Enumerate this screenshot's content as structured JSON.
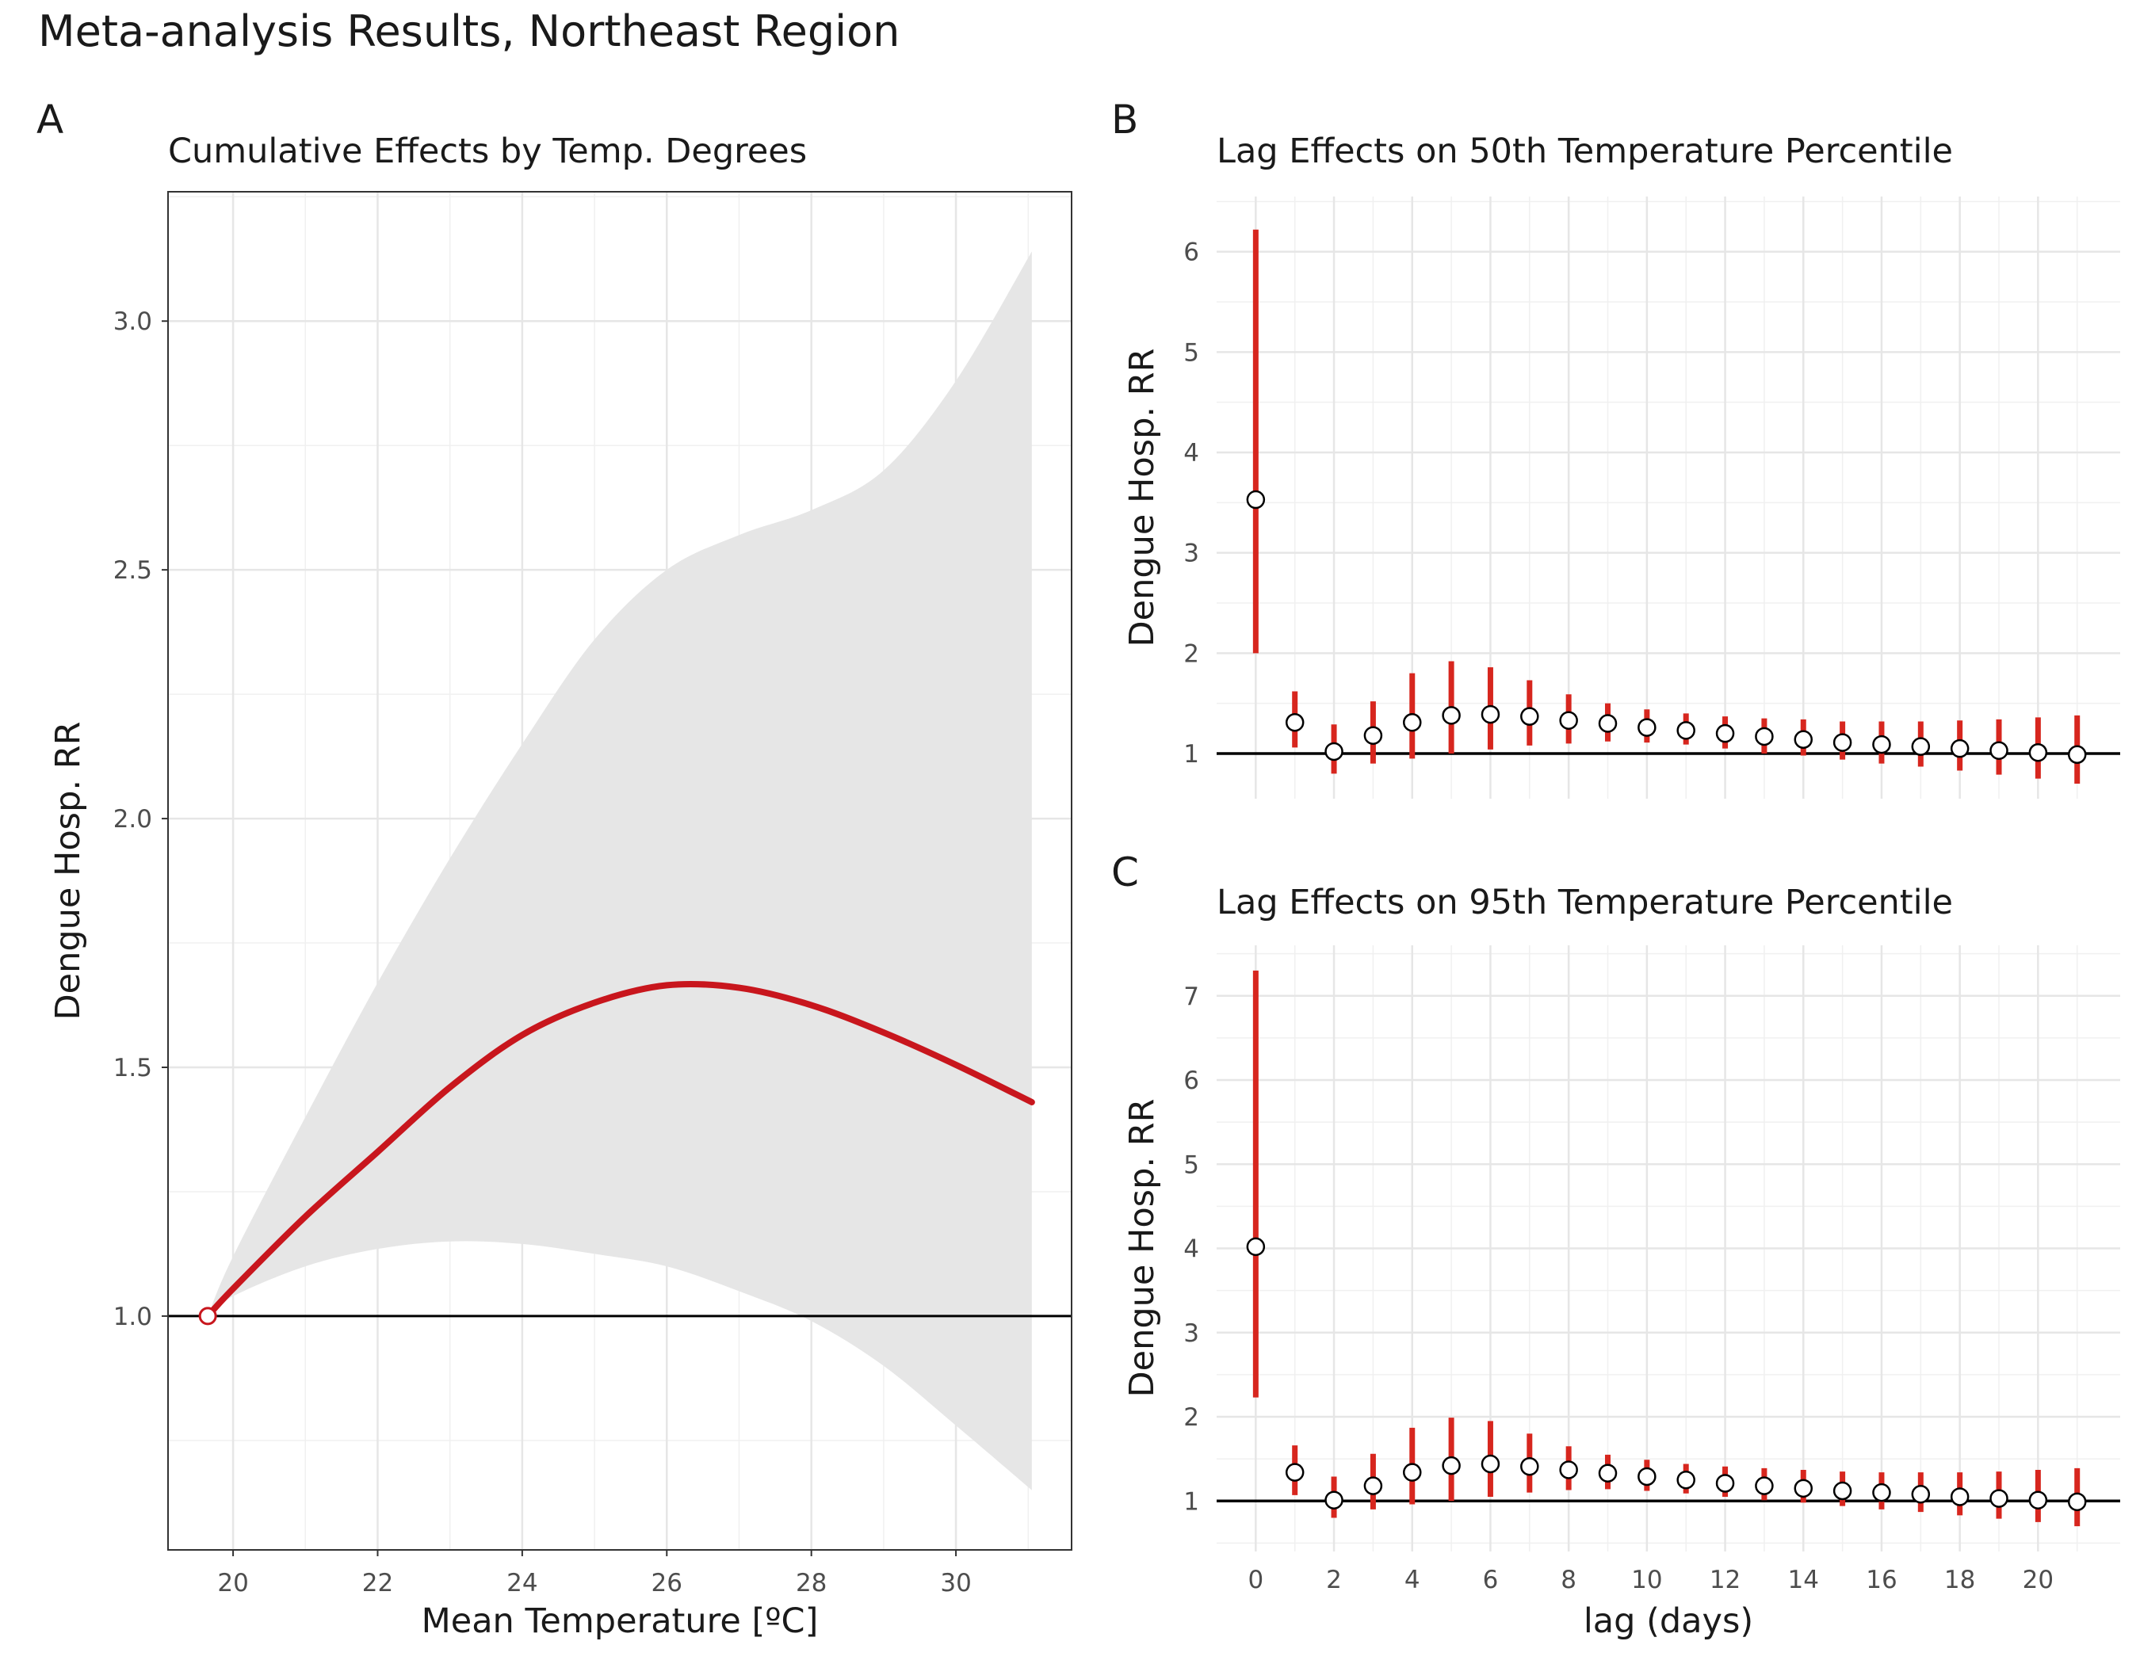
{
  "title": "Meta-analysis Results, Northeast Region",
  "chart_data": [
    {
      "tag": "A",
      "type": "line",
      "title": "Cumulative Effects by Temp. Degrees",
      "xlabel": "Mean Temperature [ºC]",
      "ylabel": "Dengue Hosp. RR",
      "xlim": [
        19.1,
        31.6
      ],
      "ylim": [
        0.53,
        3.26
      ],
      "xticks": [
        20,
        22,
        24,
        26,
        28,
        30
      ],
      "yticks": [
        1.0,
        1.5,
        2.0,
        2.5,
        3.0
      ],
      "ytick_labels": [
        "1.0",
        "1.5",
        "2.0",
        "2.5",
        "3.0"
      ],
      "grid": true,
      "reference_line": 1,
      "reference_point": {
        "x": 19.65,
        "y": 1.0
      },
      "colors": {
        "line": "#c8161d",
        "band": "#e6e6e6",
        "marker_edge": "#c8161d"
      },
      "x": [
        19.65,
        20,
        21,
        22,
        23,
        24,
        25,
        26,
        27,
        28,
        29,
        30,
        31.05
      ],
      "y": [
        1.0,
        1.055,
        1.2,
        1.33,
        1.46,
        1.565,
        1.63,
        1.665,
        1.66,
        1.625,
        1.57,
        1.505,
        1.43
      ],
      "lower": [
        1.0,
        1.04,
        1.1,
        1.135,
        1.15,
        1.145,
        1.125,
        1.1,
        1.05,
        0.99,
        0.9,
        0.78,
        0.65
      ],
      "upper": [
        1.0,
        1.12,
        1.4,
        1.67,
        1.92,
        2.15,
        2.36,
        2.5,
        2.57,
        2.62,
        2.7,
        2.88,
        3.14
      ]
    },
    {
      "tag": "B",
      "type": "scatter",
      "title": "Lag Effects on 50th Temperature Percentile",
      "xlabel": "",
      "ylabel": "Dengue Hosp. RR",
      "xlim": [
        -1,
        22.1
      ],
      "ylim": [
        0.55,
        6.55
      ],
      "xticks": [
        0,
        2,
        4,
        6,
        8,
        10,
        12,
        14,
        16,
        18,
        20
      ],
      "yticks": [
        1,
        2,
        3,
        4,
        5,
        6
      ],
      "grid": true,
      "reference_line": 1,
      "colors": {
        "errorbar": "#d7261e",
        "point_fill": "#ffffff",
        "point_edge": "#000000"
      },
      "x": [
        0,
        1,
        2,
        3,
        4,
        5,
        6,
        7,
        8,
        9,
        10,
        11,
        12,
        13,
        14,
        15,
        16,
        17,
        18,
        19,
        20,
        21
      ],
      "y": [
        3.53,
        1.31,
        1.02,
        1.18,
        1.31,
        1.38,
        1.39,
        1.37,
        1.33,
        1.3,
        1.26,
        1.23,
        1.2,
        1.17,
        1.14,
        1.11,
        1.09,
        1.07,
        1.05,
        1.03,
        1.01,
        0.99
      ],
      "lower": [
        2.0,
        1.06,
        0.8,
        0.9,
        0.95,
        1.0,
        1.04,
        1.08,
        1.1,
        1.12,
        1.11,
        1.09,
        1.05,
        1.0,
        0.98,
        0.94,
        0.9,
        0.87,
        0.83,
        0.79,
        0.75,
        0.7
      ],
      "upper": [
        6.22,
        1.62,
        1.29,
        1.52,
        1.8,
        1.92,
        1.86,
        1.73,
        1.59,
        1.5,
        1.44,
        1.4,
        1.37,
        1.35,
        1.34,
        1.32,
        1.32,
        1.32,
        1.33,
        1.34,
        1.36,
        1.38
      ]
    },
    {
      "tag": "C",
      "type": "scatter",
      "title": "Lag Effects on 95th Temperature Percentile",
      "xlabel": "lag (days)",
      "ylabel": "Dengue Hosp. RR",
      "xlim": [
        -1,
        22.1
      ],
      "ylim": [
        0.4,
        7.6
      ],
      "xticks": [
        0,
        2,
        4,
        6,
        8,
        10,
        12,
        14,
        16,
        18,
        20
      ],
      "yticks": [
        1,
        2,
        3,
        4,
        5,
        6,
        7
      ],
      "grid": true,
      "reference_line": 1,
      "colors": {
        "errorbar": "#d7261e",
        "point_fill": "#ffffff",
        "point_edge": "#000000"
      },
      "x": [
        0,
        1,
        2,
        3,
        4,
        5,
        6,
        7,
        8,
        9,
        10,
        11,
        12,
        13,
        14,
        15,
        16,
        17,
        18,
        19,
        20,
        21
      ],
      "y": [
        4.02,
        1.34,
        1.01,
        1.18,
        1.34,
        1.42,
        1.44,
        1.41,
        1.37,
        1.33,
        1.29,
        1.25,
        1.21,
        1.18,
        1.15,
        1.12,
        1.1,
        1.08,
        1.05,
        1.03,
        1.01,
        0.99
      ],
      "lower": [
        2.23,
        1.07,
        0.8,
        0.9,
        0.96,
        1.0,
        1.05,
        1.1,
        1.13,
        1.14,
        1.12,
        1.09,
        1.05,
        1.01,
        0.98,
        0.94,
        0.9,
        0.87,
        0.83,
        0.79,
        0.75,
        0.7
      ],
      "upper": [
        7.3,
        1.66,
        1.29,
        1.56,
        1.87,
        1.99,
        1.95,
        1.8,
        1.65,
        1.55,
        1.49,
        1.44,
        1.41,
        1.39,
        1.37,
        1.35,
        1.34,
        1.34,
        1.34,
        1.35,
        1.37,
        1.39
      ]
    }
  ]
}
